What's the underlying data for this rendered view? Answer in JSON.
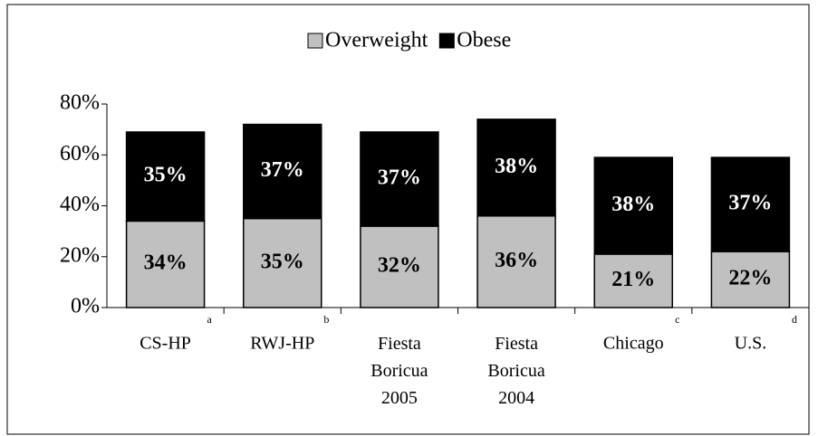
{
  "chart_data": {
    "type": "stacked_bar",
    "categories": [
      "CS-HP",
      "RWJ-HP",
      "Fiesta Boricua 2005",
      "Fiesta Boricua 2004",
      "Chicago",
      "U.S."
    ],
    "category_notes": [
      "a",
      "b",
      null,
      null,
      "c",
      "d"
    ],
    "series": [
      {
        "name": "Overweight",
        "color": "#c0c0c0",
        "values": [
          34,
          35,
          32,
          36,
          21,
          22
        ],
        "value_labels": [
          "34%",
          "35%",
          "32%",
          "36%",
          "21%",
          "22%"
        ]
      },
      {
        "name": "Obese",
        "color": "#000000",
        "values": [
          35,
          37,
          37,
          38,
          38,
          37
        ],
        "value_labels": [
          "35%",
          "37%",
          "37%",
          "38%",
          "38%",
          "37%"
        ]
      }
    ],
    "ylim": [
      0,
      80
    ],
    "yticks": [
      {
        "value": 0,
        "label": "0%"
      },
      {
        "value": 20,
        "label": "20%"
      },
      {
        "value": 40,
        "label": "40%"
      },
      {
        "value": 60,
        "label": "60%"
      },
      {
        "value": 80,
        "label": "80%"
      }
    ],
    "legend": "top"
  }
}
